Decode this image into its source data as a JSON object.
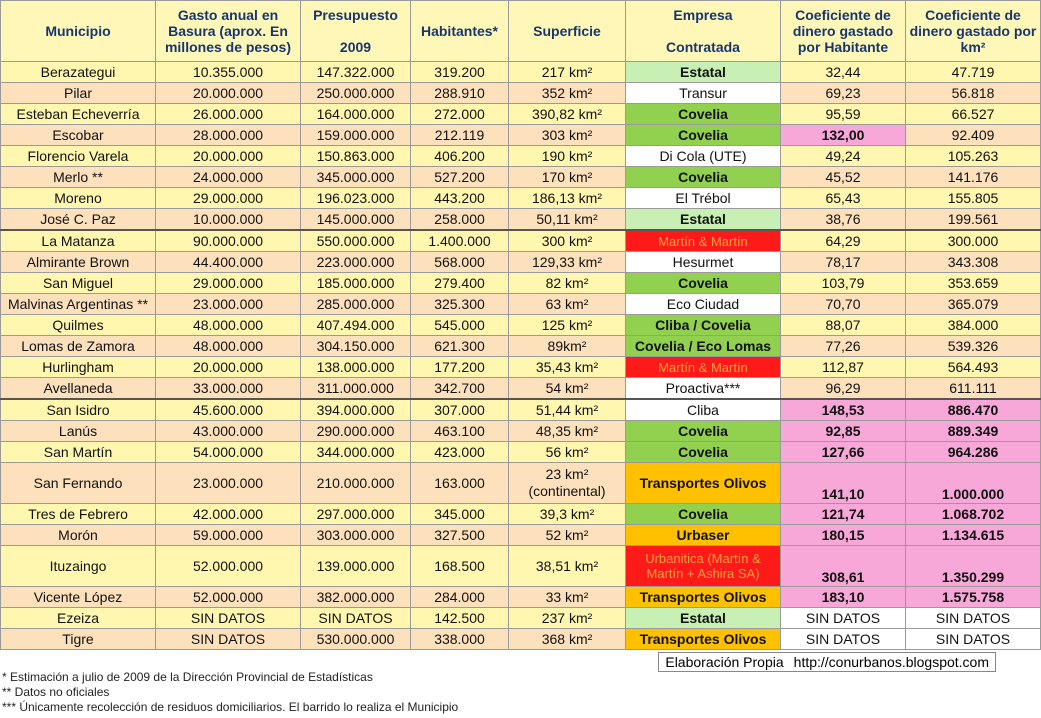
{
  "header": {
    "columns": [
      "Municipio",
      "Gasto anual en Basura (aprox. En millones de pesos)",
      "Presupuesto\n\n2009",
      "Habitantes*",
      "Superficie",
      "Empresa\n\nContratada",
      "Coeficiente de dinero gastado por Habitante",
      "Coeficiente de dinero gastado por km²"
    ]
  },
  "table": {
    "rows": [
      [
        "Berazategui",
        "10.355.000",
        "147.322.000",
        "319.200",
        "217 km²",
        "Estatal",
        "32,44",
        "47.719"
      ],
      [
        "Pilar",
        "20.000.000",
        "250.000.000",
        "288.910",
        "352 km²",
        "Transur",
        "69,23",
        "56.818"
      ],
      [
        "Esteban Echeverría",
        "26.000.000",
        "164.000.000",
        "272.000",
        "390,82 km²",
        "Covelia",
        "95,59",
        "66.527"
      ],
      [
        "Escobar",
        "28.000.000",
        "159.000.000",
        "212.119",
        "303 km²",
        "Covelia",
        "132,00",
        "92.409"
      ],
      [
        "Florencio Varela",
        "20.000.000",
        "150.863.000",
        "406.200",
        "190 km²",
        "Di Cola (UTE)",
        "49,24",
        "105.263"
      ],
      [
        "Merlo **",
        "24.000.000",
        "345.000.000",
        "527.200",
        "170 km²",
        "Covelia",
        "45,52",
        "141.176"
      ],
      [
        "Moreno",
        "29.000.000",
        "196.023.000",
        "443.200",
        "186,13 km²",
        "El Trébol",
        "65,43",
        "155.805"
      ],
      [
        "José C. Paz",
        "10.000.000",
        "145.000.000",
        "258.000",
        "50,11 km²",
        "Estatal",
        "38,76",
        "199.561"
      ],
      [
        "La Matanza",
        "90.000.000",
        "550.000.000",
        "1.400.000",
        "300 km²",
        "Martín & Martín",
        "64,29",
        "300.000"
      ],
      [
        "Almirante Brown",
        "44.400.000",
        "223.000.000",
        "568.000",
        "129,33 km²",
        "Hesurmet",
        "78,17",
        "343.308"
      ],
      [
        "San Miguel",
        "29.000.000",
        "185.000.000",
        "279.400",
        "82 km²",
        "Covelia",
        "103,79",
        "353.659"
      ],
      [
        "Malvinas Argentinas **",
        "23.000.000",
        "285.000.000",
        "325.300",
        "63 km²",
        "Eco Ciudad",
        "70,70",
        "365.079"
      ],
      [
        "Quilmes",
        "48.000.000",
        "407.494.000",
        "545.000",
        "125 km²",
        "Cliba / Covelia",
        "88,07",
        "384.000"
      ],
      [
        "Lomas de Zamora",
        "48.000.000",
        "304.150.000",
        "621.300",
        "89km²",
        "Covelia / Eco Lomas",
        "77,26",
        "539.326"
      ],
      [
        "Hurlingham",
        "20.000.000",
        "138.000.000",
        "177.200",
        "35,43 km²",
        "Martín & Martín",
        "112,87",
        "564.493"
      ],
      [
        "Avellaneda",
        "33.000.000",
        "311.000.000",
        "342.700",
        "54 km²",
        "Proactiva***",
        "96,29",
        "611.111"
      ],
      [
        "San Isidro",
        "45.600.000",
        "394.000.000",
        "307.000",
        "51,44 km²",
        "Cliba",
        "148,53",
        "886.470"
      ],
      [
        "Lanús",
        "43.000.000",
        "290.000.000",
        "463.100",
        "48,35 km²",
        "Covelia",
        "92,85",
        "889.349"
      ],
      [
        "San Martín",
        "54.000.000",
        "344.000.000",
        "423.000",
        "56 km²",
        "Covelia",
        "127,66",
        "964.286"
      ],
      [
        "San Fernando",
        "23.000.000",
        "210.000.000",
        "163.000",
        "23 km²\n(continental)",
        "Transportes Olivos",
        "141,10",
        "1.000.000"
      ],
      [
        "Tres de Febrero",
        "42.000.000",
        "297.000.000",
        "345.000",
        "39,3 km²",
        "Covelia",
        "121,74",
        "1.068.702"
      ],
      [
        "Morón",
        "59.000.000",
        "303.000.000",
        "327.500",
        "52 km²",
        "Urbaser",
        "180,15",
        "1.134.615"
      ],
      [
        "Ituzaingo",
        "52.000.000",
        "139.000.000",
        "168.500",
        "38,51 km²",
        "Urbanitica (Martín & Martín + Ashira SA)",
        "308,61",
        "1.350.299"
      ],
      [
        "Vicente López",
        "52.000.000",
        "382.000.000",
        "284.000",
        "33 km²",
        "Transportes Olivos",
        "183,10",
        "1.575.758"
      ],
      [
        "Ezeiza",
        "SIN DATOS",
        "SIN DATOS",
        "142.500",
        "237 km²",
        "Estatal",
        "SIN DATOS",
        "SIN DATOS"
      ],
      [
        "Tigre",
        "SIN DATOS",
        "530.000.000",
        "338.000",
        "368 km²",
        "Transportes Olivos",
        "SIN DATOS",
        "SIN DATOS"
      ]
    ]
  },
  "credit": {
    "label": "Elaboración Propia",
    "url": "http://conurbanos.blogspot.com"
  },
  "footnotes": [
    "* Estimación a julio de 2009 de la Dirección Provincial de Estadísticas",
    "** Datos no oficiales",
    "*** Únicamente recolección de residuos domiciliarios. El barrido lo realiza el Municipio"
  ]
}
